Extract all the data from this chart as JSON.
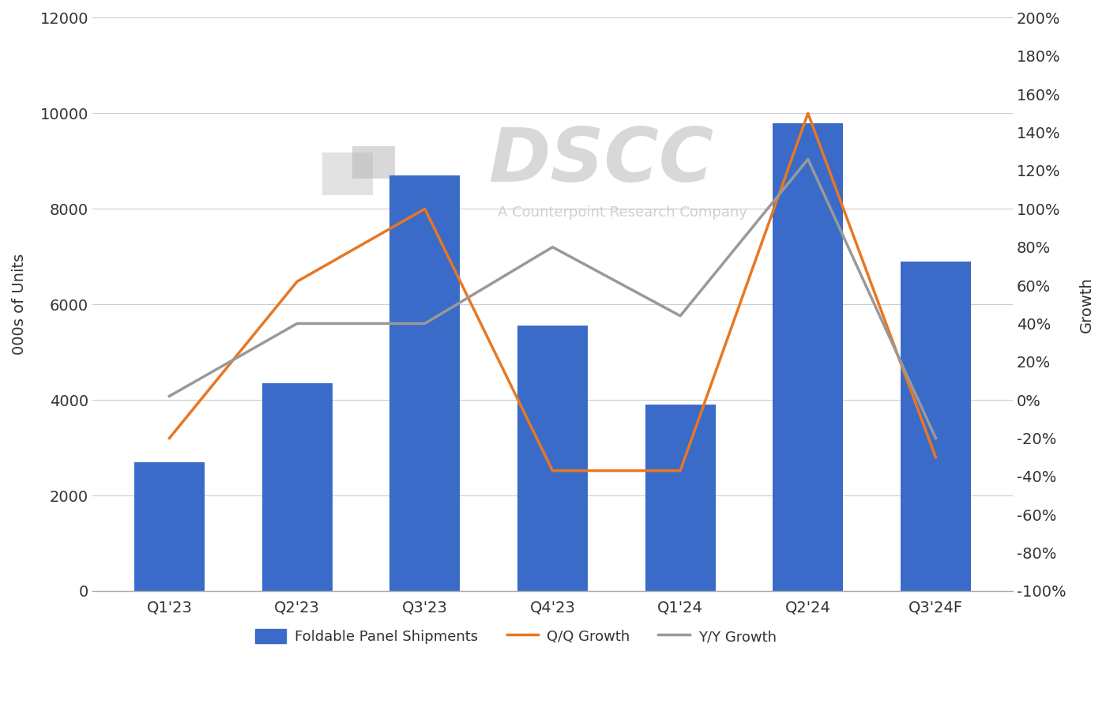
{
  "categories": [
    "Q1'23",
    "Q2'23",
    "Q3'23",
    "Q4'23",
    "Q1'24",
    "Q2'24",
    "Q3'24F"
  ],
  "bar_values": [
    2700,
    4350,
    8700,
    5550,
    3900,
    9800,
    6900
  ],
  "qoq_growth": [
    -0.2,
    0.62,
    1.0,
    -0.37,
    -0.37,
    1.5,
    -0.3
  ],
  "yoy_growth": [
    0.02,
    0.4,
    0.4,
    0.8,
    0.44,
    1.26,
    -0.2
  ],
  "bar_color": "#3A6BC8",
  "qoq_color": "#E87722",
  "yoy_color": "#999999",
  "left_ylim": [
    0,
    12000
  ],
  "left_yticks": [
    0,
    2000,
    4000,
    6000,
    8000,
    10000,
    12000
  ],
  "right_ylim": [
    -1.0,
    2.0
  ],
  "right_yticks": [
    -1.0,
    -0.8,
    -0.6,
    -0.4,
    -0.2,
    0.0,
    0.2,
    0.4,
    0.6,
    0.8,
    1.0,
    1.2,
    1.4,
    1.6,
    1.8,
    2.0
  ],
  "right_ytick_labels": [
    "-100%",
    "-80%",
    "-60%",
    "-40%",
    "-20%",
    "0%",
    "20%",
    "40%",
    "60%",
    "80%",
    "100%",
    "120%",
    "140%",
    "160%",
    "180%",
    "200%"
  ],
  "ylabel_left": "000s of Units",
  "ylabel_right": "Growth",
  "legend_labels": [
    "Foldable Panel Shipments",
    "Q/Q Growth",
    "Y/Y Growth"
  ],
  "background_color": "#ffffff",
  "grid_color": "#cccccc",
  "watermark_text": "DSCC",
  "watermark_sub": "A Counterpoint Research Company",
  "tick_fontsize": 14,
  "ylabel_fontsize": 14,
  "xlabel_fontsize": 14,
  "legend_fontsize": 13
}
